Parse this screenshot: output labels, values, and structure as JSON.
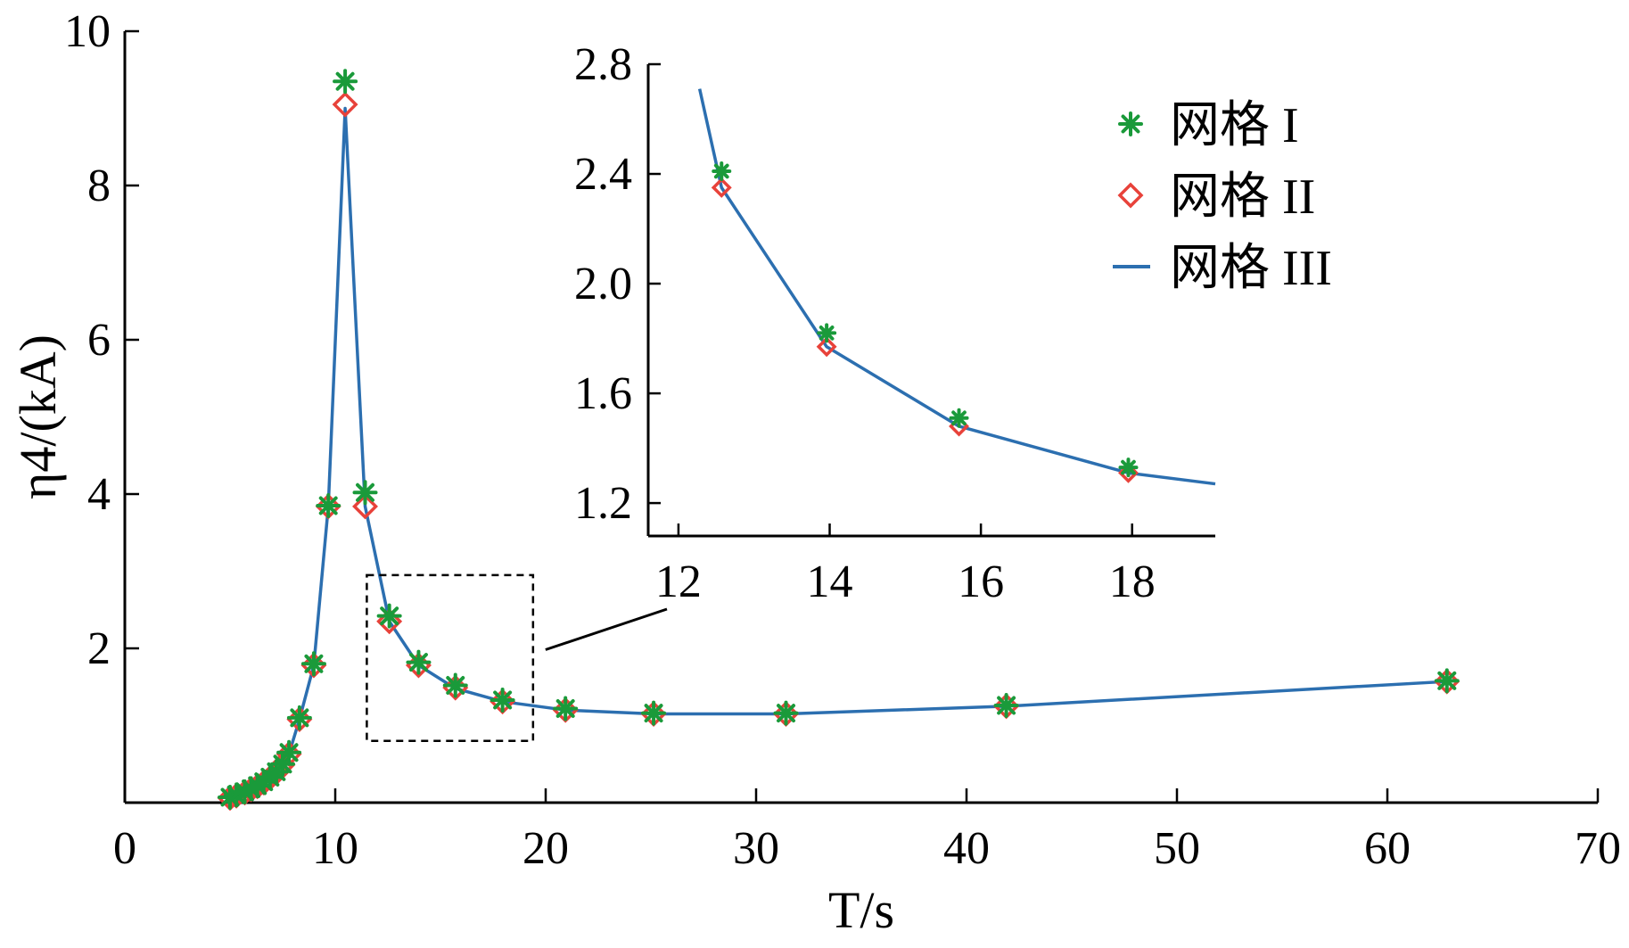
{
  "colors": {
    "grid_I": "#1a9a3a",
    "grid_II": "#e8423a",
    "grid_III": "#2c6fb0",
    "axis": "#000000"
  },
  "chart_data": [
    {
      "id": "main",
      "type": "scatter",
      "xlabel": "T/s",
      "ylabel": "η4/(kA)",
      "xlim": [
        0,
        70
      ],
      "ylim": [
        0,
        10
      ],
      "x_ticks": [
        0,
        10,
        20,
        30,
        40,
        50,
        60,
        70
      ],
      "y_ticks": [
        2,
        4,
        6,
        8,
        10
      ],
      "grid": false,
      "legend_position": "top-right (inside inset area)",
      "series": [
        {
          "name": "网格 I",
          "marker": "asterisk",
          "color": "#1a9a3a",
          "x": [
            5.0,
            5.3,
            5.7,
            6.0,
            6.3,
            6.6,
            6.9,
            7.2,
            7.5,
            7.8,
            8.3,
            8.98,
            9.67,
            10.47,
            11.42,
            12.57,
            13.96,
            15.71,
            17.95,
            20.94,
            25.13,
            31.42,
            41.89,
            62.83
          ],
          "y": [
            0.07,
            0.1,
            0.14,
            0.18,
            0.22,
            0.27,
            0.33,
            0.4,
            0.5,
            0.65,
            1.1,
            1.8,
            3.85,
            9.35,
            4.02,
            2.42,
            1.82,
            1.52,
            1.33,
            1.22,
            1.16,
            1.16,
            1.26,
            1.58
          ]
        },
        {
          "name": "网格 II",
          "marker": "diamond",
          "color": "#e8423a",
          "x": [
            5.0,
            5.3,
            5.7,
            6.0,
            6.3,
            6.6,
            6.9,
            7.2,
            7.5,
            7.8,
            8.3,
            8.98,
            9.67,
            10.47,
            11.42,
            12.57,
            13.96,
            15.71,
            17.95,
            20.94,
            25.13,
            31.42,
            41.89,
            62.83
          ],
          "y": [
            0.06,
            0.09,
            0.13,
            0.17,
            0.21,
            0.26,
            0.32,
            0.39,
            0.49,
            0.63,
            1.08,
            1.78,
            3.84,
            9.05,
            3.84,
            2.35,
            1.78,
            1.49,
            1.31,
            1.2,
            1.15,
            1.15,
            1.25,
            1.57
          ]
        },
        {
          "name": "网格 III",
          "marker": "line",
          "color": "#2c6fb0",
          "x": [
            5.0,
            5.3,
            5.7,
            6.0,
            6.3,
            6.6,
            6.9,
            7.2,
            7.5,
            7.8,
            8.3,
            8.98,
            9.67,
            10.47,
            11.42,
            12.57,
            13.96,
            15.71,
            17.95,
            20.94,
            25.13,
            31.42,
            41.89,
            62.83
          ],
          "y": [
            0.06,
            0.09,
            0.13,
            0.17,
            0.21,
            0.26,
            0.32,
            0.39,
            0.49,
            0.63,
            1.08,
            1.78,
            3.84,
            9.0,
            3.84,
            2.35,
            1.78,
            1.48,
            1.31,
            1.2,
            1.15,
            1.15,
            1.25,
            1.57
          ]
        }
      ],
      "annotations": [
        {
          "type": "dashed-box",
          "xrange": [
            11.5,
            19.4
          ],
          "yrange": [
            0.8,
            2.95
          ]
        }
      ]
    },
    {
      "id": "inset",
      "type": "scatter",
      "xlabel": "",
      "ylabel": "",
      "xlim": [
        11.6,
        19.1
      ],
      "ylim": [
        1.08,
        2.8
      ],
      "x_ticks": [
        12,
        14,
        16,
        18
      ],
      "y_ticks": [
        1.2,
        1.6,
        2.0,
        2.4,
        2.8
      ],
      "grid": false,
      "series": [
        {
          "name": "网格 I",
          "marker": "asterisk",
          "color": "#1a9a3a",
          "x": [
            12.57,
            13.96,
            15.71,
            17.95
          ],
          "y": [
            2.41,
            1.82,
            1.51,
            1.33
          ]
        },
        {
          "name": "网格 II",
          "marker": "diamond",
          "color": "#e8423a",
          "x": [
            12.57,
            13.96,
            15.71,
            17.95
          ],
          "y": [
            2.35,
            1.77,
            1.48,
            1.31
          ]
        },
        {
          "name": "网格 III",
          "marker": "line",
          "color": "#2c6fb0",
          "x": [
            12.28,
            12.57,
            13.96,
            15.71,
            17.95,
            19.1
          ],
          "y": [
            2.71,
            2.35,
            1.77,
            1.48,
            1.31,
            1.27
          ]
        }
      ]
    }
  ],
  "legend": {
    "items": [
      {
        "label": "网格 I",
        "marker": "asterisk",
        "color": "#1a9a3a"
      },
      {
        "label": "网格 II",
        "marker": "diamond",
        "color": "#e8423a"
      },
      {
        "label": "网格 III",
        "marker": "line",
        "color": "#2c6fb0"
      }
    ]
  }
}
